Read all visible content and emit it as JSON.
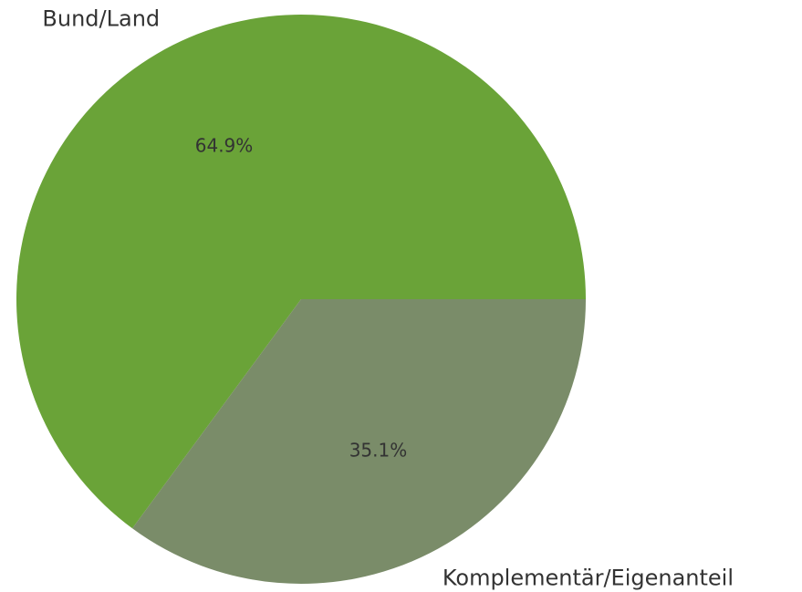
{
  "chart_data": {
    "type": "pie",
    "categories": [
      "Bund/Land",
      "Komplementär/Eigenanteil"
    ],
    "values": [
      64.9,
      35.1
    ],
    "value_labels": [
      "64.9%",
      "35.1%"
    ],
    "colors": [
      "#6aa338",
      "#7a8c69"
    ]
  }
}
